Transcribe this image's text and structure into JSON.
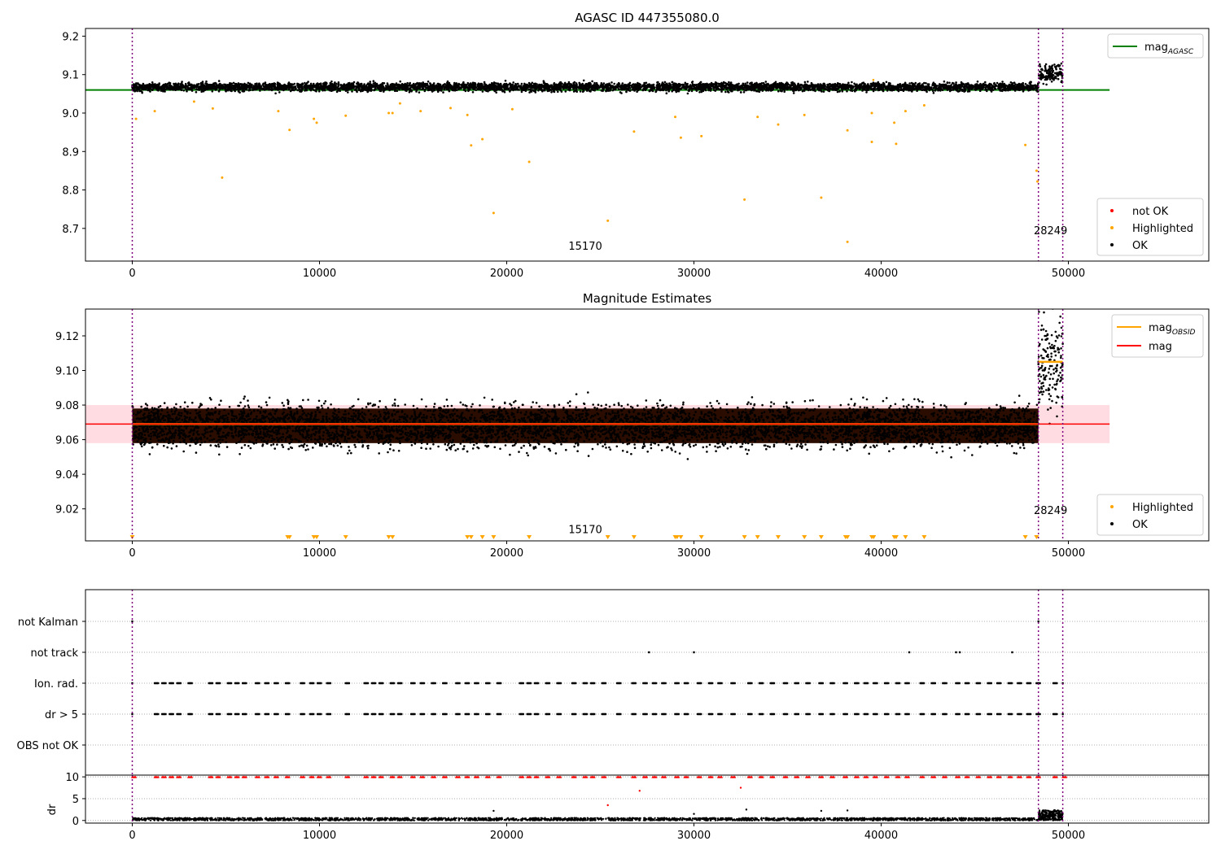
{
  "chart_data": [
    {
      "type": "scatter",
      "title": "AGASC ID 447355080.0",
      "xlim": [
        -2500,
        57500
      ],
      "ylim": [
        8.615,
        9.22
      ],
      "x_ticks": [
        0,
        10000,
        20000,
        30000,
        40000,
        50000
      ],
      "y_ticks": [
        8.7,
        8.8,
        8.9,
        9.0,
        9.1,
        9.2
      ],
      "obsid_boundaries": [
        0,
        48400,
        49700
      ],
      "obsid_labels": [
        {
          "x": 24200,
          "y": 8.645,
          "text": "15170"
        },
        {
          "x": 49050,
          "y": 8.685,
          "text": "28249"
        }
      ],
      "mag_agasc": 9.06,
      "legend_lines": [
        {
          "label": "mag",
          "sub": "AGASC",
          "color": "#008000"
        }
      ],
      "legend_points": [
        {
          "label": "not OK",
          "color": "#ff0000"
        },
        {
          "label": "Highlighted",
          "color": "#ffa500"
        },
        {
          "label": "OK",
          "color": "#000000"
        }
      ],
      "segments": [
        {
          "x_start": 0,
          "x_end": 48400,
          "center": 9.068,
          "sigma": 0.0075
        },
        {
          "x_start": 48400,
          "x_end": 49700,
          "center": 9.105,
          "sigma": 0.016
        }
      ],
      "highlighted_outliers": [
        {
          "x": 200,
          "y": 8.985
        },
        {
          "x": 1200,
          "y": 9.005
        },
        {
          "x": 3300,
          "y": 9.03
        },
        {
          "x": 4300,
          "y": 9.012
        },
        {
          "x": 4800,
          "y": 8.832
        },
        {
          "x": 7800,
          "y": 9.005
        },
        {
          "x": 8400,
          "y": 8.956
        },
        {
          "x": 9700,
          "y": 8.985
        },
        {
          "x": 9850,
          "y": 8.975
        },
        {
          "x": 11400,
          "y": 8.993
        },
        {
          "x": 13700,
          "y": 9.0
        },
        {
          "x": 13900,
          "y": 9.0
        },
        {
          "x": 14300,
          "y": 9.025
        },
        {
          "x": 15400,
          "y": 9.005
        },
        {
          "x": 17000,
          "y": 9.013
        },
        {
          "x": 17900,
          "y": 8.995
        },
        {
          "x": 18100,
          "y": 8.916
        },
        {
          "x": 18700,
          "y": 8.932
        },
        {
          "x": 19300,
          "y": 8.74
        },
        {
          "x": 20300,
          "y": 9.01
        },
        {
          "x": 21200,
          "y": 8.873
        },
        {
          "x": 25400,
          "y": 8.72
        },
        {
          "x": 26800,
          "y": 8.952
        },
        {
          "x": 29000,
          "y": 8.99
        },
        {
          "x": 29300,
          "y": 8.936
        },
        {
          "x": 30400,
          "y": 8.94
        },
        {
          "x": 32700,
          "y": 8.775
        },
        {
          "x": 33400,
          "y": 8.99
        },
        {
          "x": 34500,
          "y": 8.97
        },
        {
          "x": 35900,
          "y": 8.995
        },
        {
          "x": 36800,
          "y": 8.78
        },
        {
          "x": 38200,
          "y": 8.955
        },
        {
          "x": 38200,
          "y": 8.665
        },
        {
          "x": 39500,
          "y": 8.925
        },
        {
          "x": 39500,
          "y": 9.0
        },
        {
          "x": 40700,
          "y": 8.975
        },
        {
          "x": 40800,
          "y": 8.92
        },
        {
          "x": 41300,
          "y": 9.005
        },
        {
          "x": 42300,
          "y": 9.02
        },
        {
          "x": 47700,
          "y": 8.917
        },
        {
          "x": 48300,
          "y": 8.85
        },
        {
          "x": 48350,
          "y": 8.822
        }
      ]
    },
    {
      "type": "scatter",
      "title": "Magnitude Estimates",
      "xlim": [
        -2500,
        57500
      ],
      "ylim": [
        9.0015,
        9.1355
      ],
      "x_ticks": [
        0,
        10000,
        20000,
        30000,
        40000,
        50000
      ],
      "y_ticks": [
        9.02,
        9.04,
        9.06,
        9.08,
        9.1,
        9.12
      ],
      "obsid_boundaries": [
        0,
        48400,
        49700
      ],
      "obsid_labels": [
        {
          "x": 24200,
          "y": 9.006,
          "text": "15170"
        },
        {
          "x": 49050,
          "y": 9.017,
          "text": "28249"
        }
      ],
      "mag": 9.069,
      "mag_band": [
        9.058,
        9.08
      ],
      "mag_obsid": [
        {
          "x_start": 0,
          "x_end": 48400,
          "value": 9.069
        },
        {
          "x_start": 48400,
          "x_end": 49700,
          "value": 9.105
        }
      ],
      "legend_lines": [
        {
          "label": "mag",
          "sub": "OBSID",
          "color": "#ffa500"
        },
        {
          "label": "mag",
          "sub": "",
          "color": "#ff0000"
        }
      ],
      "legend_points": [
        {
          "label": "Highlighted",
          "color": "#ffa500"
        },
        {
          "label": "OK",
          "color": "#000000"
        }
      ],
      "below_range_markers_x": [
        0,
        8300,
        8400,
        9700,
        9850,
        11400,
        13700,
        13900,
        17900,
        18100,
        18700,
        19300,
        21200,
        25400,
        26800,
        29000,
        29100,
        29300,
        30400,
        32700,
        33400,
        34500,
        35900,
        36800,
        38100,
        38200,
        39500,
        39600,
        40700,
        40800,
        41300,
        42300,
        47700,
        48300
      ]
    },
    {
      "type": "flags",
      "categories": [
        "not Kalman",
        "not track",
        "Ion. rad.",
        "dr > 5",
        "OBS not OK"
      ],
      "xlim": [
        -2500,
        57500
      ],
      "x_ticks": [
        0,
        10000,
        20000,
        30000,
        40000,
        50000
      ],
      "obsid_boundaries": [
        0,
        48400,
        49700
      ],
      "not_kalman_x": [
        0,
        48400
      ],
      "not_track_x": [
        27600,
        30000,
        41500,
        44000,
        44200,
        47000
      ],
      "ion_rad_groups_x": [
        1200,
        1600,
        2000,
        2400,
        3000,
        4100,
        4500,
        5100,
        5500,
        5900,
        6600,
        7100,
        7600,
        8200,
        9000,
        9500,
        9900,
        10400,
        11400,
        12400,
        12800,
        13200,
        13800,
        14200,
        14900,
        15400,
        16000,
        16600,
        17300,
        17800,
        18300,
        18900,
        19500,
        20700,
        21100,
        21500,
        22100,
        22700,
        23500,
        24100,
        24500,
        25100,
        25900,
        26700,
        27300,
        27800,
        28300,
        29000,
        29500,
        30200,
        30800,
        31300,
        32000,
        32900,
        33500,
        34100,
        34800,
        35400,
        36000,
        36700,
        37300,
        38000,
        38600,
        39100,
        39600,
        40200,
        40800,
        41300,
        42100,
        42700,
        43300,
        44000,
        44500,
        45100,
        45700,
        46200,
        46800,
        47300,
        47800,
        48300,
        49200
      ],
      "dr_gt5_groups_x": [
        1200,
        1600,
        2000,
        2400,
        3000,
        4100,
        4500,
        5100,
        5500,
        5900,
        6600,
        7100,
        7600,
        8200,
        9000,
        9500,
        9900,
        10400,
        11400,
        12400,
        12800,
        13200,
        13800,
        14200,
        14900,
        15400,
        16000,
        16600,
        17300,
        17800,
        18300,
        18900,
        19500,
        20700,
        21100,
        21500,
        22100,
        22700,
        23500,
        24100,
        24500,
        25100,
        25900,
        26700,
        27300,
        27800,
        28300,
        29000,
        29500,
        30200,
        30800,
        31300,
        32000,
        32900,
        33500,
        34100,
        34800,
        35400,
        36000,
        36700,
        37300,
        38000,
        38600,
        39100,
        39600,
        40200,
        40800,
        41300,
        42100,
        42700,
        43300,
        44000,
        44500,
        45100,
        45700,
        46200,
        46800,
        47300,
        47800,
        48300,
        49200
      ]
    },
    {
      "type": "scatter",
      "ylabel": "dr",
      "xlim": [
        -2500,
        57500
      ],
      "ylim": [
        -0.6,
        10.4
      ],
      "x_ticks": [
        0,
        10000,
        20000,
        30000,
        40000,
        50000
      ],
      "y_ticks": [
        0,
        5,
        10
      ],
      "obsid_boundaries": [
        0,
        48400,
        49700
      ],
      "dr_clipped_value": 10,
      "dr_mid_outliers_red": [
        {
          "x": 25400,
          "y": 3.5
        },
        {
          "x": 27100,
          "y": 6.8
        },
        {
          "x": 32500,
          "y": 7.5
        }
      ],
      "dr_mid_outliers_black": [
        {
          "x": 19300,
          "y": 2.2
        },
        {
          "x": 30000,
          "y": 1.5
        },
        {
          "x": 32800,
          "y": 2.5
        },
        {
          "x": 36800,
          "y": 2.2
        },
        {
          "x": 38200,
          "y": 2.3
        }
      ],
      "dr_typical_range": [
        0,
        0.6
      ]
    }
  ]
}
